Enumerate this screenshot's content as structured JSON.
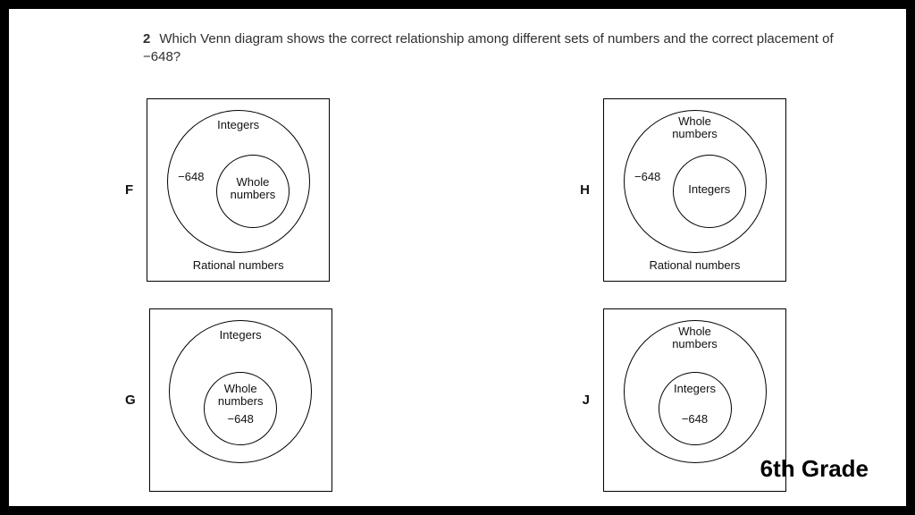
{
  "question": {
    "number": "2",
    "text": "Which Venn diagram shows the correct relationship among different sets of numbers and the correct placement of −648?"
  },
  "options": {
    "F": {
      "letter": "F",
      "outer_label": "Integers",
      "inner_label": "Whole\nnumbers",
      "number_label": "−648",
      "bottom_label": "Rational numbers",
      "number_position": "outer-left",
      "inner_shifted": true
    },
    "H": {
      "letter": "H",
      "outer_label": "Whole\nnumbers",
      "inner_label": "Integers",
      "number_label": "−648",
      "bottom_label": "Rational numbers",
      "number_position": "outer-left",
      "inner_shifted": true
    },
    "G": {
      "letter": "G",
      "outer_label": "Integers",
      "inner_label": "Whole\nnumbers",
      "number_label": "−648",
      "bottom_label": "",
      "number_position": "inner-bottom",
      "inner_shifted": false
    },
    "J": {
      "letter": "J",
      "outer_label": "Whole\nnumbers",
      "inner_label": "Integers",
      "number_label": "−648",
      "bottom_label": "",
      "number_position": "inner-bottom",
      "inner_shifted": false
    }
  },
  "grade_label": "6th Grade",
  "style": {
    "box_border": "#000000",
    "frame_border": "#000000",
    "bg": "#ffffff",
    "font": "Arial",
    "question_fontsize": 15,
    "label_fontsize": 13,
    "grade_fontsize": 26
  }
}
